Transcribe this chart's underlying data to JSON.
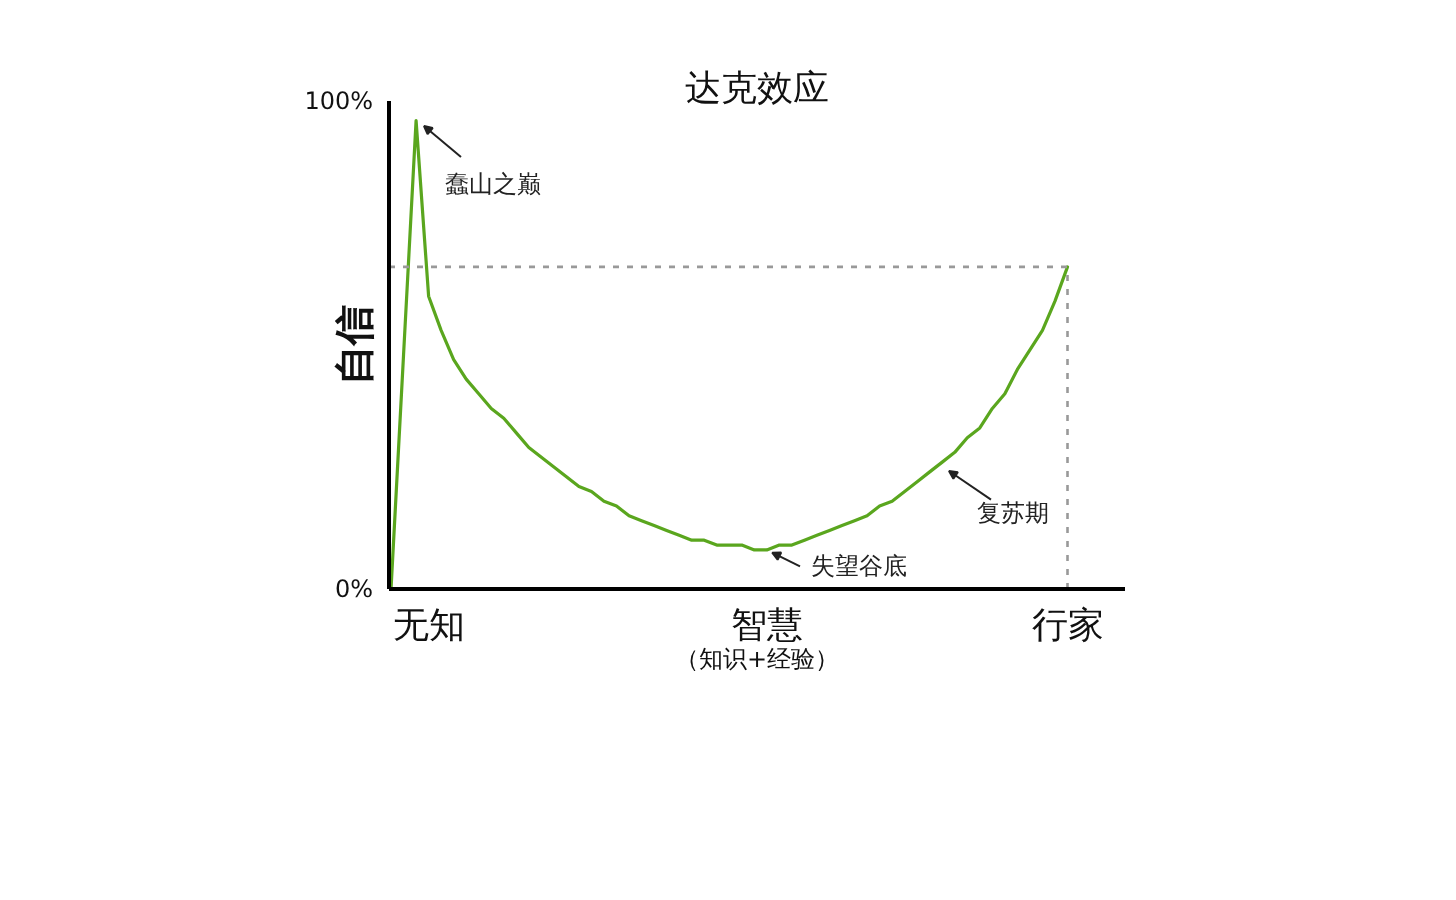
{
  "chart_data": {
    "type": "line",
    "title": "达克效应",
    "xlabel": "（知识+经验）",
    "ylabel": "自信",
    "categories": [
      null,
      null,
      null,
      "无知",
      null,
      null,
      null,
      null,
      null,
      null,
      null,
      null,
      null,
      null,
      null,
      null,
      null,
      null,
      null,
      null,
      null,
      null,
      null,
      null,
      null,
      null,
      null,
      null,
      null,
      null,
      "智慧",
      null,
      null,
      null,
      null,
      null,
      null,
      null,
      null,
      null,
      null,
      null,
      null,
      null,
      null,
      null,
      null,
      null,
      null,
      null,
      null,
      null,
      null,
      null,
      "行家"
    ],
    "values": [
      0,
      48,
      96,
      60,
      53,
      47,
      43,
      40,
      37,
      35,
      32,
      29,
      27,
      25,
      23,
      21,
      20,
      18,
      17,
      15,
      14,
      13,
      12,
      11,
      10,
      10,
      9,
      9,
      9,
      8,
      8,
      9,
      9,
      10,
      11,
      12,
      13,
      14,
      15,
      17,
      18,
      20,
      22,
      24,
      26,
      28,
      31,
      33,
      37,
      40,
      45,
      49,
      53,
      59,
      66
    ],
    "color": "#5aa61e",
    "ylim": [
      0,
      100
    ],
    "yticks": [
      {
        "value": 0,
        "label": "0%"
      },
      {
        "value": 100,
        "label": "100%"
      }
    ],
    "ref_lines": [
      {
        "axis": "y",
        "value": 66,
        "color": "#999999",
        "line_style": "dotted"
      },
      {
        "axis": "x",
        "value": "行家",
        "color": "#999999",
        "line_style": "dotted"
      }
    ],
    "annotations": [
      "蠢山之巅",
      {
        "text": "失望谷底",
        "x": "智慧",
        "y": 8
      },
      "复苏期"
    ]
  }
}
